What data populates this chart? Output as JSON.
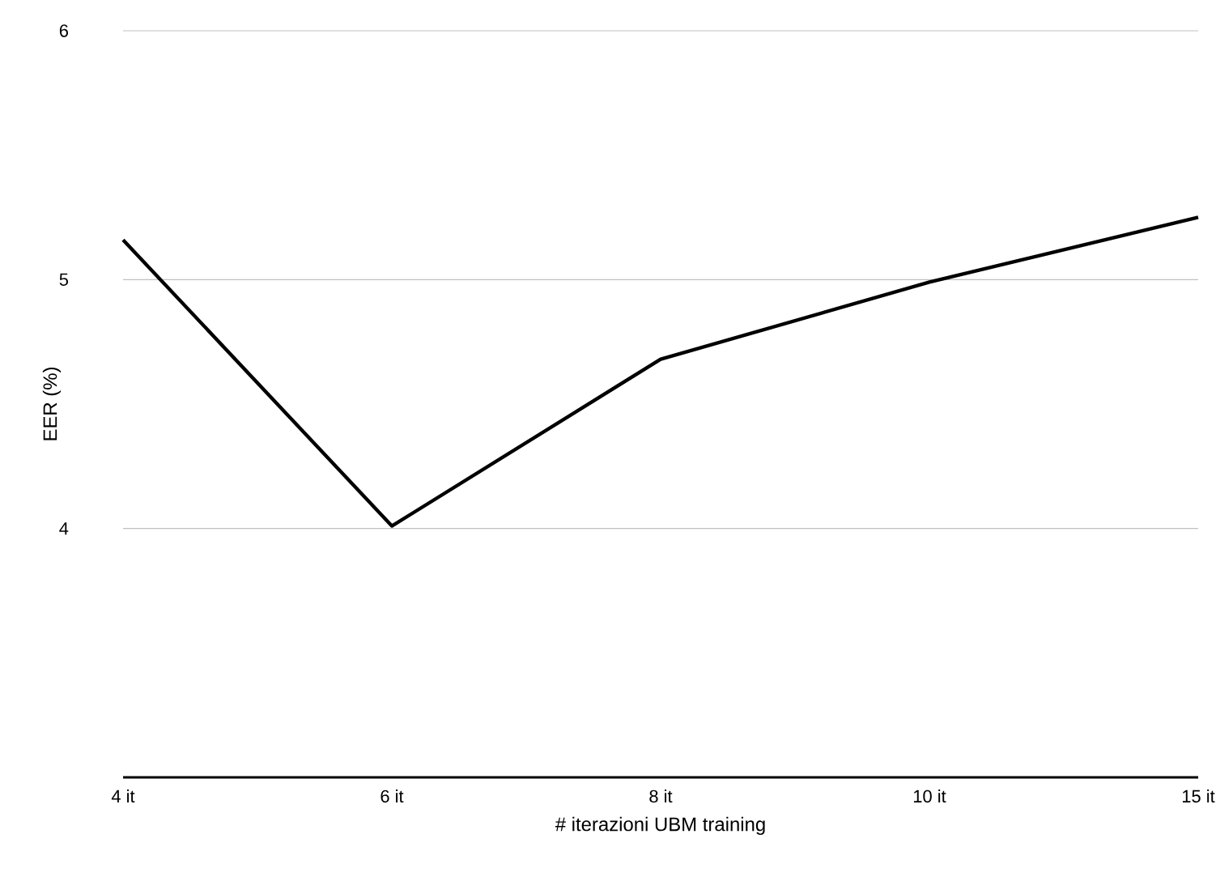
{
  "chart_data": {
    "type": "line",
    "xlabel": "# iterazioni UBM training",
    "ylabel": "EER (%)",
    "categories": [
      "4 it",
      "6 it",
      "8 it",
      "10 it",
      "15 it"
    ],
    "values": [
      5.16,
      4.01,
      4.68,
      4.99,
      5.25
    ],
    "color": "#000000",
    "ylim": [
      3,
      6
    ],
    "yticks": [
      4,
      5,
      6
    ],
    "grid": "y",
    "marker": "none",
    "line_style": "solid"
  }
}
